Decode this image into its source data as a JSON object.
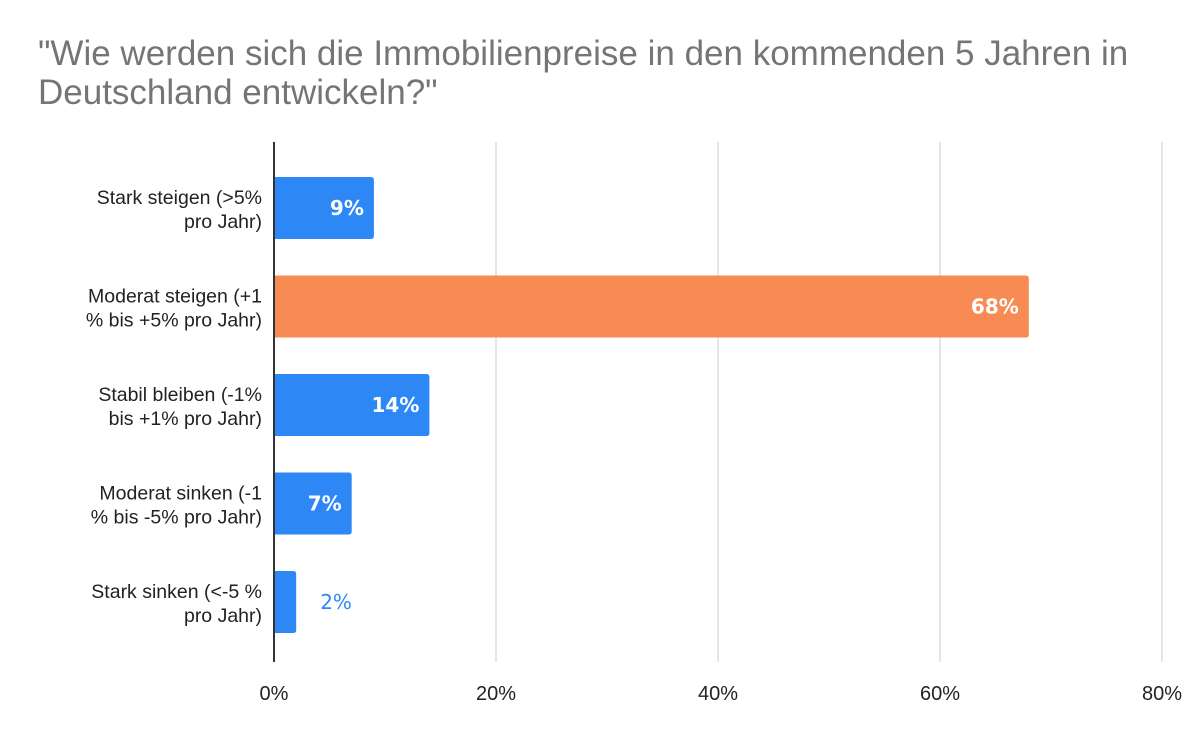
{
  "chart_data": {
    "type": "bar",
    "orientation": "horizontal",
    "title": "\"Wie werden sich die Immobilienpreise in den kommenden 5 Jahren in Deutschland entwickeln?\"",
    "categories": [
      [
        "Stark steigen (>5%",
        "pro Jahr)"
      ],
      [
        "Moderat steigen (+1",
        "% bis +5% pro Jahr)"
      ],
      [
        "Stabil bleiben (-1%",
        "bis +1% pro Jahr)"
      ],
      [
        "Moderat sinken (-1",
        "% bis -5% pro Jahr)"
      ],
      [
        "Stark sinken (<-5 %",
        "pro Jahr)"
      ]
    ],
    "values": [
      9,
      68,
      14,
      7,
      2
    ],
    "data_labels": [
      "9%",
      "68%",
      "14%",
      "7%",
      "2%"
    ],
    "highlight_index": 1,
    "colors": {
      "default": "#2d88f5",
      "highlight": "#f78b53",
      "label_inside": "#ffffff",
      "label_outside": "#2d88f5",
      "grid": "#cccccc",
      "axis": "#333333"
    },
    "xlim": [
      0,
      80
    ],
    "xticks": [
      0,
      20,
      40,
      60,
      80
    ],
    "xtick_labels": [
      "0%",
      "20%",
      "40%",
      "60%",
      "80%"
    ],
    "grid": "vertical",
    "xlabel": "",
    "ylabel": ""
  }
}
